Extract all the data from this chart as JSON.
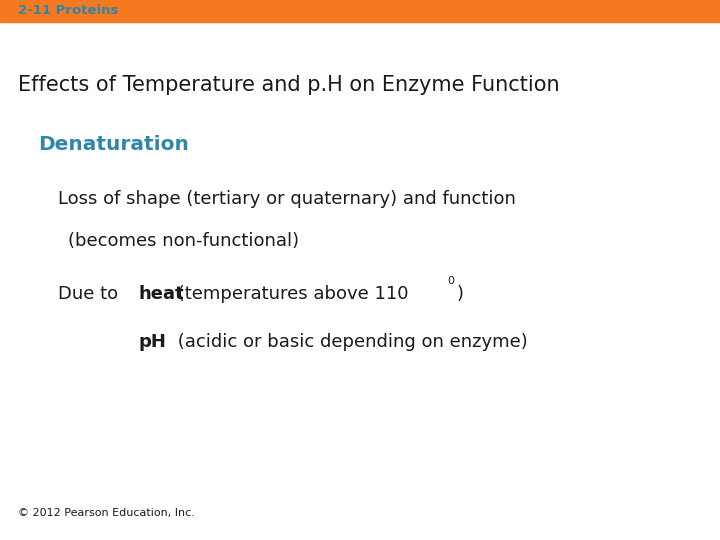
{
  "orange_bar_color": "#F47920",
  "header_label": "2-11 Proteins",
  "header_color": "#2E86AB",
  "header_fontsize": 9.5,
  "title_text": "Effects of Temperature and p.H on Enzyme Function",
  "title_fontsize": 15,
  "title_color": "#1a1a1a",
  "subheading_text": "Denaturation",
  "subheading_color": "#2E86AB",
  "subheading_fontsize": 14.5,
  "line1_text": "Loss of shape (tertiary or quaternary) and function",
  "line1_fontsize": 13,
  "line2_text": "(becomes non-functional)",
  "line2_fontsize": 13,
  "line3a_text": "Due to",
  "line3b_bold_text": "heat",
  "line3c_text": " (temperatures above 110",
  "superscript_text": "0",
  "line3d_text": ")",
  "line3_fontsize": 13,
  "line4a_bold_text": "pH",
  "line4b_text": " (acidic or basic depending on enzyme)",
  "line4_fontsize": 13,
  "copyright_text": "© 2012 Pearson Education, Inc.",
  "copyright_fontsize": 8,
  "bg_color": "#ffffff",
  "text_color": "#1a1a1a"
}
